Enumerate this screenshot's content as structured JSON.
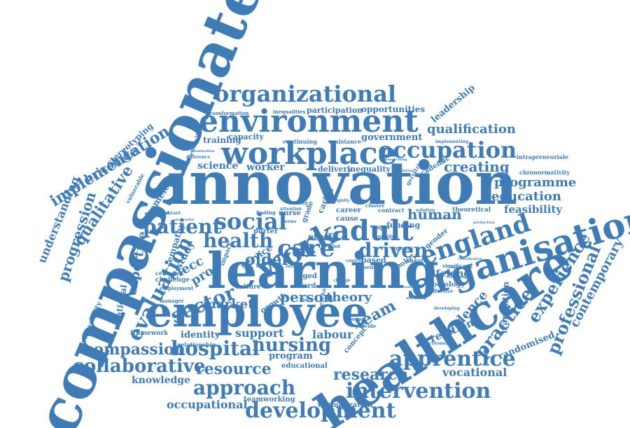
{
  "accent_color": "#3f7cb6",
  "words": {
    "compassionate": "compassionate",
    "innovation": "innovation",
    "healthcare": "healthcare",
    "learning": "learning",
    "employee": "employee",
    "organisation": "organisation",
    "workplace": "workplace",
    "environment": "environment",
    "organizational": "organizational",
    "occupation": "occupation",
    "work": "work",
    "adult": "adult",
    "care": "care",
    "england": "england",
    "patient": "patient",
    "social": "social",
    "driven": "driven",
    "health": "health",
    "development": "development",
    "intervention": "intervention",
    "apprentice": "apprentice",
    "approach": "approach",
    "collaborative": "collaborative",
    "hospital": "hospital",
    "nursing": "nursing",
    "compassion": "compassion",
    "resource": "resource",
    "research": "research",
    "evaluation": "evaluation",
    "sector": "sector",
    "experience": "experience",
    "professional": "professional",
    "contemporary": "contemporary",
    "practice": "practice",
    "qualification": "qualification",
    "creating": "creating",
    "programme": "programme",
    "education": "education",
    "feasibility": "feasibility",
    "human": "human",
    "implementation": "implementation",
    "qualitative": "qualitative",
    "progression": "progression",
    "understanding": "understanding",
    "bricolage": "bricolage",
    "expertise": "expertise",
    "older": "older",
    "person": "person",
    "theory": "theory",
    "team": "team",
    "market": "market",
    "support": "support",
    "labour": "labour",
    "identity": "identity",
    "knowledge": "knowledge",
    "occupational": "occupational",
    "vocational": "vocational",
    "lifelong": "lifelong",
    "evidence": "evidence",
    "relation": "relation",
    "randomised": "randomised",
    "science": "science",
    "worker": "worker",
    "training": "training",
    "capacity": "capacity",
    "government": "government",
    "opportunities": "opportunities",
    "participation": "participation",
    "leadership": "leadership",
    "stereotyping": "stereotyping",
    "staff": "staff",
    "quality": "quality",
    "crafting": "crafting",
    "homeless": "homeless",
    "study": "study",
    "empathy": "empathy",
    "elecc": "elecc",
    "proc": "proc",
    "service": "service",
    "sustainability": "sustainability",
    "relational": "relational",
    "translation": "translation",
    "chronormativity": "chronormativity",
    "intrapreneuriale": "intrapreneuriale",
    "teamworking": "teamworking",
    "normalization": "normalization",
    "program": "program",
    "educational": "educational",
    "funding": "funding",
    "inequality": "inequality",
    "delivery": "delivery",
    "transformation": "transformation",
    "inequalities": "inequalities",
    "continuing": "continuing",
    "resistance": "resistance",
    "framework": "framework",
    "relationship": "relationship",
    "challenge": "challenge",
    "growth": "growth",
    "based": "based",
    "senior": "senior",
    "career": "career",
    "cause": "cause",
    "nurse": "nurse",
    "ward": "ward",
    "aged": "aged",
    "pilot": "pilot",
    "contract": "contract",
    "chapter": "chapter",
    "sociology": "sociology",
    "significant": "significant",
    "theoretical": "theoretical",
    "academic": "academic",
    "solution": "solution",
    "implementing": "implementing",
    "difference": "difference",
    "examination": "examination",
    "scienceall": "scienceall",
    "effectiveness": "effectiveness",
    "centered": "centered",
    "employment": "employment",
    "manager": "manager",
    "agency": "agency",
    "policy": "policy",
    "concept": "concept",
    "context": "context",
    "provide": "provide",
    "culture": "culture",
    "impact": "impact",
    "porter": "porter",
    "finding": "finding",
    "woman": "woman",
    "attention": "attention",
    "gender": "gender",
    "effective": "effective",
    "developing": "developing",
    "paper": "paper",
    "english": "english",
    "vulnerable": "vulnerable",
    "assistant": "assistant",
    "empirical": "empirical",
    "successful": "successful",
    "translating": "translating",
    "researching": "researching",
    "geriatric": "geriatric",
    "dignity": "dignity",
    "exchange": "exchange",
    "change": "change",
    "term": "term",
    "terms": "terms",
    "grade": "grade",
    "cluster": "cluster",
    "caring": "caring",
    "control": "control",
    "more": "more",
    "marketing": "marketing",
    "measured": "measured",
    "contrasting": "contrasting",
    "approaches": "approaches",
    "production": "production",
    "explanation": "explanation",
    "contribution": "contribution"
  }
}
